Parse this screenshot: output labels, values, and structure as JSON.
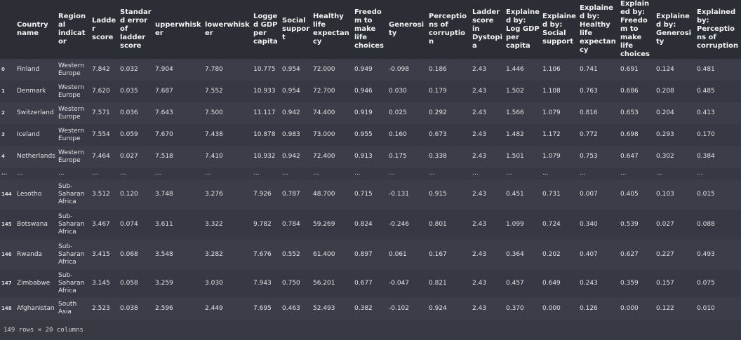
{
  "columns": [
    "",
    "Country name",
    "Regional indicator",
    "Ladder score",
    "Standard error of ladder score",
    "upperwhisker",
    "lowerwhisker",
    "Logged GDP per capita",
    "Social support",
    "Healthy life expectancy",
    "Freedom to make life choices",
    "Generosity",
    "Perceptions of corruption",
    "Ladder score in Dystopia",
    "Explained by: Log GDP per capita",
    "Explained by: Social support",
    "Explained by: Healthy life expectancy",
    "Explained by: Freedom to make life choices",
    "Explained by: Generosity",
    "Explained by: Perceptions of corruption"
  ],
  "rows": [
    [
      "0",
      "Finland",
      "Western Europe",
      "7.842",
      "0.032",
      "7.904",
      "7.780",
      "10.775",
      "0.954",
      "72.000",
      "0.949",
      "-0.098",
      "0.186",
      "2.43",
      "1.446",
      "1.106",
      "0.741",
      "0.691",
      "0.124",
      "0.481"
    ],
    [
      "1",
      "Denmark",
      "Western Europe",
      "7.620",
      "0.035",
      "7.687",
      "7.552",
      "10.933",
      "0.954",
      "72.700",
      "0.946",
      "0.030",
      "0.179",
      "2.43",
      "1.502",
      "1.108",
      "0.763",
      "0.686",
      "0.208",
      "0.485"
    ],
    [
      "2",
      "Switzerland",
      "Western Europe",
      "7.571",
      "0.036",
      "7.643",
      "7.500",
      "11.117",
      "0.942",
      "74.400",
      "0.919",
      "0.025",
      "0.292",
      "2.43",
      "1.566",
      "1.079",
      "0.816",
      "0.653",
      "0.204",
      "0.413"
    ],
    [
      "3",
      "Iceland",
      "Western Europe",
      "7.554",
      "0.059",
      "7.670",
      "7.438",
      "10.878",
      "0.983",
      "73.000",
      "0.955",
      "0.160",
      "0.673",
      "2.43",
      "1.482",
      "1.172",
      "0.772",
      "0.698",
      "0.293",
      "0.170"
    ],
    [
      "4",
      "Netherlands",
      "Western Europe",
      "7.464",
      "0.027",
      "7.518",
      "7.410",
      "10.932",
      "0.942",
      "72.400",
      "0.913",
      "0.175",
      "0.338",
      "2.43",
      "1.501",
      "1.079",
      "0.753",
      "0.647",
      "0.302",
      "0.384"
    ],
    [
      "...",
      "...",
      "...",
      "...",
      "...",
      "...",
      "...",
      "...",
      "...",
      "...",
      "...",
      "...",
      "...",
      "...",
      "...",
      "...",
      "...",
      "...",
      "...",
      "..."
    ],
    [
      "144",
      "Lesotho",
      "Sub-Saharan Africa",
      "3.512",
      "0.120",
      "3.748",
      "3.276",
      "7.926",
      "0.787",
      "48.700",
      "0.715",
      "-0.131",
      "0.915",
      "2.43",
      "0.451",
      "0.731",
      "0.007",
      "0.405",
      "0.103",
      "0.015"
    ],
    [
      "145",
      "Botswana",
      "Sub-Saharan Africa",
      "3.467",
      "0.074",
      "3.611",
      "3.322",
      "9.782",
      "0.784",
      "59.269",
      "0.824",
      "-0.246",
      "0.801",
      "2.43",
      "1.099",
      "0.724",
      "0.340",
      "0.539",
      "0.027",
      "0.088"
    ],
    [
      "146",
      "Rwanda",
      "Sub-Saharan Africa",
      "3.415",
      "0.068",
      "3.548",
      "3.282",
      "7.676",
      "0.552",
      "61.400",
      "0.897",
      "0.061",
      "0.167",
      "2.43",
      "0.364",
      "0.202",
      "0.407",
      "0.627",
      "0.227",
      "0.493"
    ],
    [
      "147",
      "Zimbabwe",
      "Sub-Saharan Africa",
      "3.145",
      "0.058",
      "3.259",
      "3.030",
      "7.943",
      "0.750",
      "56.201",
      "0.677",
      "-0.047",
      "0.821",
      "2.43",
      "0.457",
      "0.649",
      "0.243",
      "0.359",
      "0.157",
      "0.075"
    ],
    [
      "148",
      "Afghanistan",
      "South Asia",
      "2.523",
      "0.038",
      "2.596",
      "2.449",
      "7.695",
      "0.463",
      "52.493",
      "0.382",
      "-0.102",
      "0.924",
      "2.43",
      "0.370",
      "0.000",
      "0.126",
      "0.000",
      "0.122",
      "0.010"
    ]
  ],
  "summary": "149 rows × 20 columns"
}
